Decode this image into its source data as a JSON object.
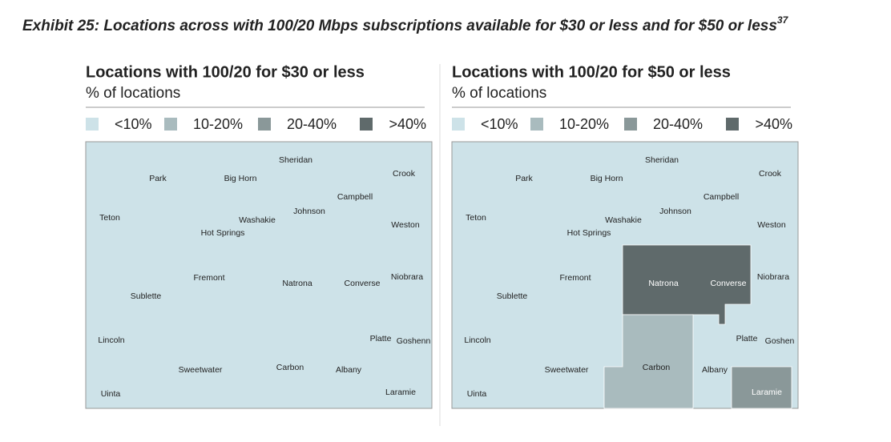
{
  "title": "Exhibit 25: Locations across with 100/20 Mbps subscriptions available for $30 or less and for $50 or less",
  "title_superscript": "37",
  "panels": [
    {
      "title": "Locations with 100/20 for $30 or less",
      "subtitle": "% of locations",
      "legend": [
        {
          "label": "<10%",
          "color": "#cde2e8"
        },
        {
          "label": "10-20%",
          "color": "#a9bbbe"
        },
        {
          "label": "20-40%",
          "color": "#8a9899"
        },
        {
          "label": ">40%",
          "color": "#5f6a6b"
        }
      ],
      "counties": [
        "Sheridan",
        "Park",
        "Big Horn",
        "Crook",
        "Campbell",
        "Johnson",
        "Teton",
        "Washakie",
        "Hot Springs",
        "Weston",
        "Fremont",
        "Natrona",
        "Converse",
        "Niobrara",
        "Sublette",
        "Lincoln",
        "Platte",
        "Goshenn",
        "Sweetwater",
        "Carbon",
        "Albany",
        "Uinta",
        "Laramie"
      ]
    },
    {
      "title": "Locations with 100/20 for $50 or less",
      "subtitle": "% of locations",
      "legend": [
        {
          "label": "<10%",
          "color": "#cde2e8"
        },
        {
          "label": "10-20%",
          "color": "#a9bbbe"
        },
        {
          "label": "20-40%",
          "color": "#8a9899"
        },
        {
          "label": ">40%",
          "color": "#5f6a6b"
        }
      ],
      "counties": [
        "Sheridan",
        "Park",
        "Big Horn",
        "Crook",
        "Campbell",
        "Johnson",
        "Teton",
        "Washakie",
        "Hot Springs",
        "Weston",
        "Fremont",
        "Natrona",
        "Converse",
        "Niobrara",
        "Sublette",
        "Lincoln",
        "Platte",
        "Goshen",
        "Sweetwater",
        "Carbon",
        "Albany",
        "Uinta",
        "Laramie"
      ]
    }
  ]
}
